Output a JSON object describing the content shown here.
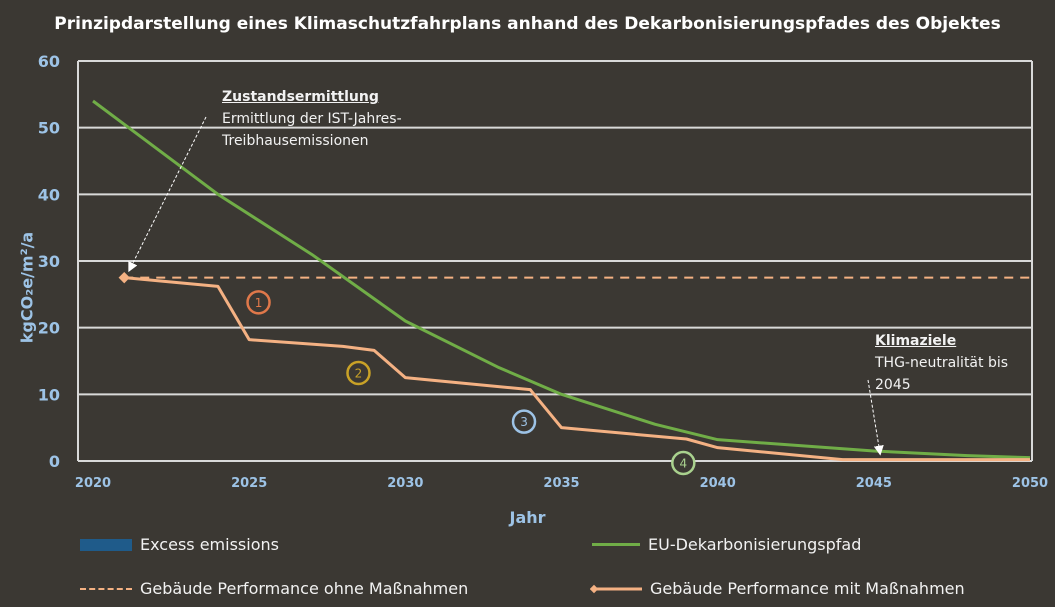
{
  "chart_data": {
    "type": "line",
    "title": "Prinzipdarstellung eines Klimaschutzfahrplans anhand des Dekarbonisierungspfades des Objektes",
    "xlabel": "Jahr",
    "ylabel": "kgCO₂e/m²/a",
    "xlim": [
      2020,
      2050
    ],
    "ylim": [
      0,
      60
    ],
    "xticks": [
      "2020",
      "2025",
      "2030",
      "2035",
      "2040",
      "2045",
      "2050"
    ],
    "yticks": [
      "0",
      "10",
      "20",
      "30",
      "40",
      "50",
      "60"
    ],
    "grid": "horizontal",
    "legend_position": "bottom",
    "series": [
      {
        "name": "Excess emissions",
        "color": "#1f5b8a",
        "style": "area",
        "x": [],
        "y": []
      },
      {
        "name": "EU-Dekarbonisierungspfad",
        "color": "#70ad47",
        "style": "solid",
        "x": [
          2020,
          2021,
          2024,
          2027,
          2030,
          2033,
          2035,
          2038,
          2040,
          2045,
          2048,
          2050
        ],
        "y": [
          54,
          50.5,
          40,
          31,
          21,
          14,
          10,
          5.5,
          3.2,
          1.5,
          0.8,
          0.5
        ]
      },
      {
        "name": "Gebäude Performance ohne Maßnahmen",
        "color": "#f4b183",
        "style": "dashed",
        "x": [
          2021,
          2050
        ],
        "y": [
          27.5,
          27.5
        ]
      },
      {
        "name": "Gebäude Performance mit Maßnahmen",
        "color": "#f4b183",
        "style": "solid-diamond",
        "x": [
          2021,
          2024,
          2025,
          2028,
          2029,
          2030,
          2034,
          2035,
          2039,
          2040,
          2044,
          2050
        ],
        "y": [
          27.5,
          26.2,
          18.2,
          17.2,
          16.6,
          12.5,
          10.7,
          5,
          3.3,
          2,
          0.2,
          0.2
        ]
      }
    ],
    "markers": [
      {
        "label": "1",
        "x": 2025.3,
        "y": 23.8,
        "color": "#e0784a"
      },
      {
        "label": "2",
        "x": 2028.5,
        "y": 13.2,
        "color": "#c9a227"
      },
      {
        "label": "3",
        "x": 2033.8,
        "y": 5.9,
        "color": "#9dc3e6"
      },
      {
        "label": "4",
        "x": 2038.9,
        "y": -0.3,
        "color": "#a9d18e"
      }
    ],
    "annotations": [
      {
        "heading": "Zustandsermittlung",
        "lines": [
          "Ermittlung der IST-Jahres-",
          "Treibhausemissionen"
        ],
        "arrow_to": [
          2021,
          28
        ]
      },
      {
        "heading": "Klimaziele",
        "lines": [
          "THG-neutralität bis",
          "2045"
        ],
        "arrow_to": [
          2045.2,
          0.8
        ]
      }
    ]
  }
}
